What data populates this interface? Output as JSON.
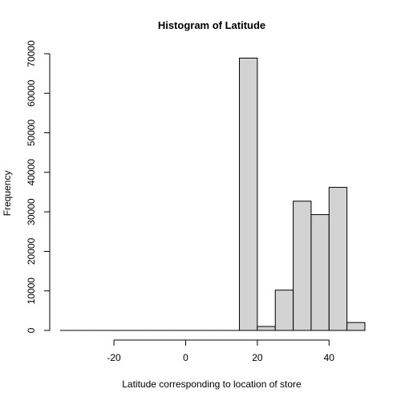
{
  "chart_data": {
    "type": "bar",
    "title": "Histogram of Latitude",
    "xlabel": "Latitude corresponding to location of store",
    "ylabel": "Frequency",
    "bins": [
      {
        "x0": -35,
        "x1": -30,
        "count": 0
      },
      {
        "x0": -30,
        "x1": -25,
        "count": 0
      },
      {
        "x0": -25,
        "x1": -20,
        "count": 0
      },
      {
        "x0": -20,
        "x1": -15,
        "count": 0
      },
      {
        "x0": -15,
        "x1": -10,
        "count": 0
      },
      {
        "x0": -10,
        "x1": -5,
        "count": 0
      },
      {
        "x0": -5,
        "x1": 0,
        "count": 0
      },
      {
        "x0": 0,
        "x1": 5,
        "count": 0
      },
      {
        "x0": 5,
        "x1": 10,
        "count": 0
      },
      {
        "x0": 10,
        "x1": 15,
        "count": 0
      },
      {
        "x0": 15,
        "x1": 20,
        "count": 68900
      },
      {
        "x0": 20,
        "x1": 25,
        "count": 1000
      },
      {
        "x0": 25,
        "x1": 30,
        "count": 10200
      },
      {
        "x0": 30,
        "x1": 35,
        "count": 32700
      },
      {
        "x0": 35,
        "x1": 40,
        "count": 29300
      },
      {
        "x0": 40,
        "x1": 45,
        "count": 36200
      },
      {
        "x0": 45,
        "x1": 50,
        "count": 2000
      }
    ],
    "xlim": [
      -35,
      50
    ],
    "ylim": [
      0,
      70000
    ],
    "x_ticks": [
      "-20",
      "0",
      "20",
      "40"
    ],
    "y_ticks": [
      "0",
      "10000",
      "20000",
      "30000",
      "40000",
      "50000",
      "60000",
      "70000"
    ],
    "bar_fill": "#d3d3d3",
    "bar_stroke": "#000000",
    "grid": false,
    "legend": "none"
  }
}
